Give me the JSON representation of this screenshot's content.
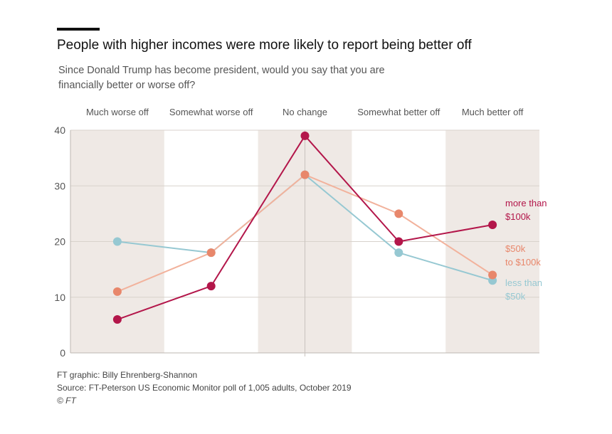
{
  "header": {
    "title": "People with higher incomes were more likely to report being better off",
    "subtitle": "Since Donald Trump has become president, would you say that you are financially better or worse off?"
  },
  "footer": {
    "credit": "FT graphic: Billy Ehrenberg-Shannon",
    "source": "Source: FT-Peterson US Economic Monitor poll of 1,005 adults, October 2019",
    "copyright": "© FT"
  },
  "colors": {
    "band": "#efe9e5",
    "grid": "#d8d2cc",
    "axis": "#bdb7b2",
    "text": "#555555"
  },
  "chart_data": {
    "type": "line",
    "categories": [
      "Much worse off",
      "Somewhat worse off",
      "No change",
      "Somewhat better off",
      "Much better off"
    ],
    "ylim": [
      0,
      40
    ],
    "yticks": [
      0,
      10,
      20,
      30,
      40
    ],
    "grid": true,
    "series": [
      {
        "name": "less than $50k",
        "label_lines": [
          "less than",
          "$50k"
        ],
        "color": "#96c8d2",
        "values": [
          20,
          18,
          32,
          18,
          13
        ]
      },
      {
        "name": "$50k to $100k",
        "label_lines": [
          "$50k",
          "to $100k"
        ],
        "color": "#e8876b",
        "line_color": "#f2b29c",
        "values": [
          11,
          18,
          32,
          25,
          14
        ]
      },
      {
        "name": "more than $100k",
        "label_lines": [
          "more than",
          "$100k"
        ],
        "color": "#b3164a",
        "values": [
          6,
          12,
          39,
          20,
          23
        ]
      }
    ]
  }
}
